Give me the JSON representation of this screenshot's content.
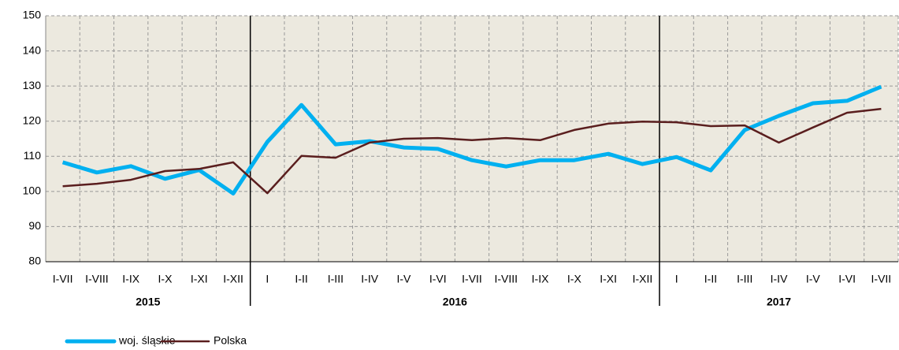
{
  "chart_data": {
    "type": "line",
    "groups": [
      {
        "label": "2015",
        "categories": [
          "I-VII",
          "I-VIII",
          "I-IX",
          "I-X",
          "I-XI",
          "I-XII"
        ]
      },
      {
        "label": "2016",
        "categories": [
          "I",
          "I-II",
          "I-III",
          "I-IV",
          "I-V",
          "I-VI",
          "I-VII",
          "I-VIII",
          "I-IX",
          "I-X",
          "I-XI",
          "I-XII"
        ]
      },
      {
        "label": "2017",
        "categories": [
          "I",
          "I-II",
          "I-III",
          "I-IV",
          "I-V",
          "I-VI",
          "I-VII"
        ]
      }
    ],
    "series": [
      {
        "name": "woj. śląskie",
        "color": "#00b0f0",
        "values": [
          108.3,
          105.4,
          107.2,
          103.6,
          106.1,
          99.4,
          114.1,
          124.6,
          113.4,
          114.3,
          112.5,
          112.1,
          108.9,
          107.1,
          108.9,
          108.9,
          110.7,
          107.8,
          109.8,
          106.0,
          117.5,
          121.5,
          125.1,
          125.8,
          129.8
        ]
      },
      {
        "name": "Polska",
        "color": "#5a1e1e",
        "values": [
          101.5,
          102.2,
          103.3,
          105.8,
          106.4,
          108.3,
          99.5,
          110.1,
          109.6,
          113.9,
          115.0,
          115.2,
          114.6,
          115.2,
          114.6,
          117.5,
          119.3,
          119.9,
          119.7,
          118.6,
          118.8,
          113.9,
          118.2,
          122.4,
          123.5
        ]
      }
    ],
    "ylim": [
      80,
      150
    ],
    "yticks": [
      80,
      90,
      100,
      110,
      120,
      130,
      140,
      150
    ],
    "grid": true
  }
}
